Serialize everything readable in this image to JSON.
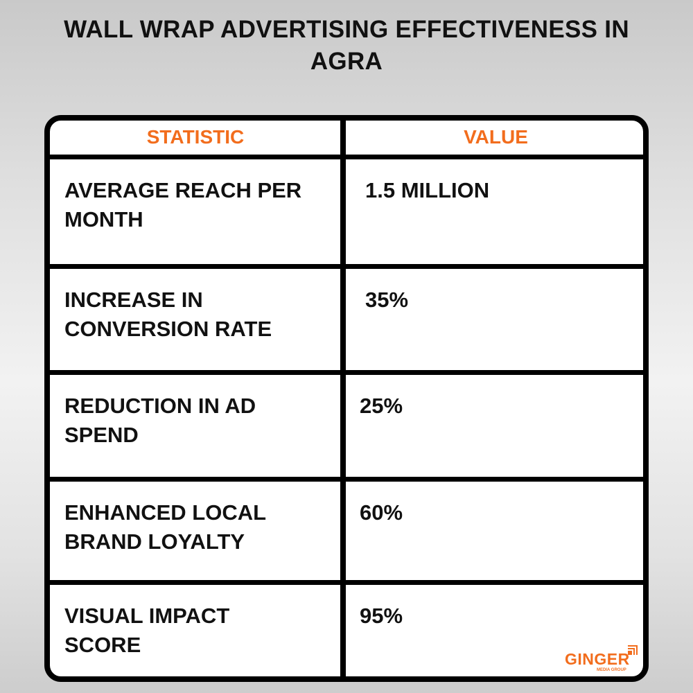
{
  "title_line1": "WALL WRAP ADVERTISING EFFECTIVENESS IN",
  "title_line2": "AGRA",
  "table": {
    "headers": [
      "STATISTIC",
      "VALUE"
    ],
    "rows": [
      {
        "stat": "AVERAGE REACH PER MONTH",
        "value": "1.5 MILLION"
      },
      {
        "stat": "INCREASE IN CONVERSION RATE",
        "value": "35%"
      },
      {
        "stat": "REDUCTION IN AD SPEND",
        "value": "25%"
      },
      {
        "stat": "ENHANCED LOCAL BRAND LOYALTY",
        "value": "60%"
      },
      {
        "stat": "VISUAL IMPACT SCORE",
        "value": "95%"
      }
    ]
  },
  "logo": {
    "name": "GINGER",
    "tagline": "MEDIA GROUP"
  },
  "colors": {
    "accent": "#f26d1d",
    "border": "#000000"
  }
}
